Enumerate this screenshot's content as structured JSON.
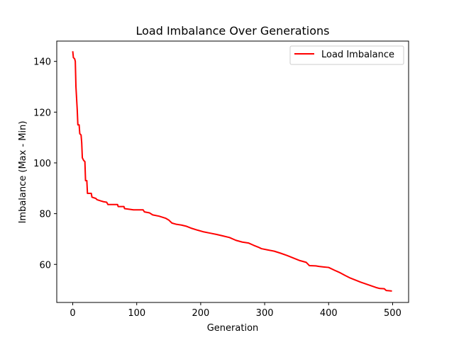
{
  "chart_data": {
    "type": "line",
    "title": "Load Imbalance Over Generations",
    "xlabel": "Generation",
    "ylabel": "Imbalance (Max - Min)",
    "xlim": [
      -25,
      525
    ],
    "ylim": [
      45,
      148
    ],
    "xticks": [
      0,
      100,
      200,
      300,
      400,
      500
    ],
    "yticks": [
      60,
      80,
      100,
      120,
      140
    ],
    "grid": false,
    "legend_position": "top-right",
    "series": [
      {
        "name": "Load Imbalance",
        "color": "#ff0000",
        "points": [
          [
            0,
            144
          ],
          [
            1,
            141.5
          ],
          [
            3,
            141
          ],
          [
            4,
            140
          ],
          [
            5,
            130
          ],
          [
            7,
            121
          ],
          [
            8,
            115
          ],
          [
            10,
            115
          ],
          [
            11,
            111.5
          ],
          [
            13,
            111
          ],
          [
            14,
            108
          ],
          [
            15,
            102
          ],
          [
            17,
            101
          ],
          [
            19,
            100.5
          ],
          [
            20,
            93
          ],
          [
            22,
            93
          ],
          [
            23,
            88
          ],
          [
            29,
            88
          ],
          [
            30,
            86.5
          ],
          [
            36,
            86
          ],
          [
            38,
            85.5
          ],
          [
            44,
            85
          ],
          [
            48,
            84.7
          ],
          [
            53,
            84.5
          ],
          [
            55,
            83.6
          ],
          [
            70,
            83.6
          ],
          [
            71,
            82.8
          ],
          [
            80,
            82.8
          ],
          [
            81,
            82
          ],
          [
            95,
            81.5
          ],
          [
            110,
            81.5
          ],
          [
            112,
            80.7
          ],
          [
            120,
            80.3
          ],
          [
            125,
            79.5
          ],
          [
            135,
            79
          ],
          [
            145,
            78.2
          ],
          [
            150,
            77.5
          ],
          [
            155,
            76.3
          ],
          [
            162,
            75.8
          ],
          [
            170,
            75.5
          ],
          [
            178,
            75
          ],
          [
            186,
            74.2
          ],
          [
            195,
            73.5
          ],
          [
            205,
            72.8
          ],
          [
            215,
            72.3
          ],
          [
            225,
            71.8
          ],
          [
            235,
            71.2
          ],
          [
            245,
            70.6
          ],
          [
            255,
            69.5
          ],
          [
            265,
            68.8
          ],
          [
            275,
            68.4
          ],
          [
            283,
            67.5
          ],
          [
            290,
            66.8
          ],
          [
            295,
            66.2
          ],
          [
            305,
            65.7
          ],
          [
            315,
            65.2
          ],
          [
            325,
            64.4
          ],
          [
            335,
            63.5
          ],
          [
            345,
            62.5
          ],
          [
            355,
            61.5
          ],
          [
            365,
            60.8
          ],
          [
            370,
            59.5
          ],
          [
            380,
            59.4
          ],
          [
            385,
            59.2
          ],
          [
            392,
            59
          ],
          [
            400,
            58.8
          ],
          [
            410,
            57.6
          ],
          [
            418,
            56.7
          ],
          [
            426,
            55.6
          ],
          [
            434,
            54.6
          ],
          [
            442,
            53.8
          ],
          [
            450,
            53
          ],
          [
            458,
            52.3
          ],
          [
            466,
            51.6
          ],
          [
            474,
            50.9
          ],
          [
            480,
            50.5
          ],
          [
            487,
            50.4
          ],
          [
            490,
            49.7
          ],
          [
            495,
            49.6
          ],
          [
            499,
            49.5
          ]
        ]
      }
    ]
  }
}
